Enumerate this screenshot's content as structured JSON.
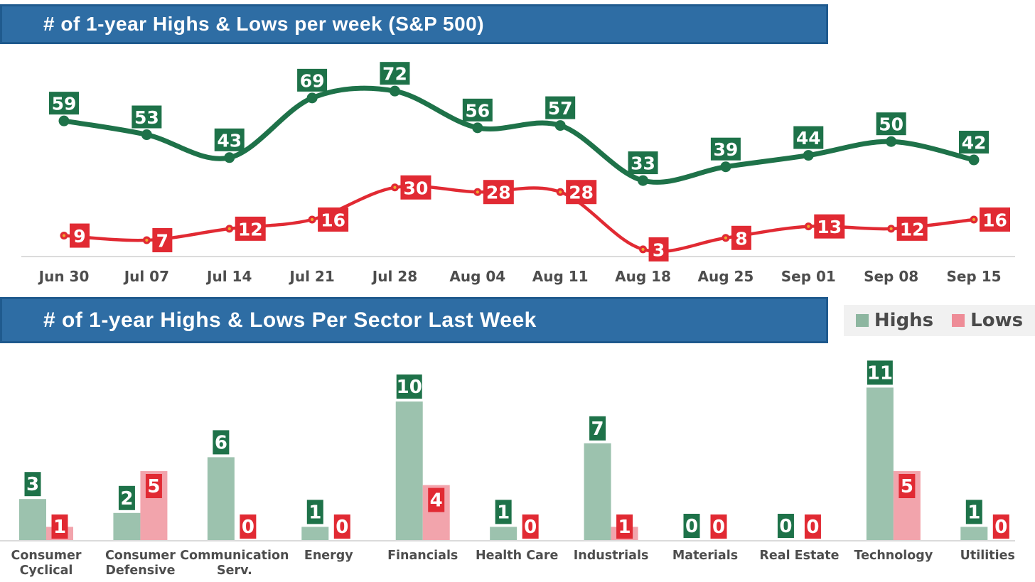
{
  "header1": {
    "title": "# of 1-year Highs & Lows per week (S&P 500)"
  },
  "header2": {
    "title": "# of 1-year Highs & Lows Per Sector Last Week"
  },
  "legend": {
    "highs_label": "Highs",
    "lows_label": "Lows"
  },
  "colors": {
    "header_bg": "#2E6DA4",
    "header_border": "#1F5A8E",
    "highs_green": "#1E7249",
    "lows_red": "#E12A33",
    "bar_green": "#9CC2AE",
    "bar_pink": "#F2A4AC",
    "legend_green": "#8DB6A0",
    "legend_pink": "#EE8C97",
    "legend_bg": "#F1F1F1",
    "axis_line": "#DBDBDB",
    "label_text": "#4D4D4D",
    "dot_center_yellow": "#F0A830",
    "label_number_text": "#FFFFFF"
  },
  "chart_data": [
    {
      "type": "line",
      "title": "# of 1-year Highs & Lows per week (S&P 500)",
      "x": [
        "Jun 30",
        "Jul 07",
        "Jul 14",
        "Jul 21",
        "Jul 28",
        "Aug 04",
        "Aug 11",
        "Aug 18",
        "Aug 25",
        "Sep 01",
        "Sep 08",
        "Sep 15"
      ],
      "series": [
        {
          "name": "Highs",
          "values": [
            59,
            53,
            43,
            69,
            72,
            56,
            57,
            33,
            39,
            44,
            50,
            42
          ]
        },
        {
          "name": "Lows",
          "values": [
            9,
            7,
            12,
            16,
            30,
            28,
            28,
            3,
            8,
            13,
            12,
            16
          ]
        }
      ],
      "ylim": [
        0,
        80
      ],
      "grid": false,
      "data_labels": true,
      "legend_position": "none"
    },
    {
      "type": "bar",
      "title": "# of 1-year Highs & Lows Per Sector Last Week",
      "categories": [
        "Consumer Cyclical",
        "Consumer Defensive",
        "Communication Serv.",
        "Energy",
        "Financials",
        "Health Care",
        "Industrials",
        "Materials",
        "Real Estate",
        "Technology",
        "Utilities"
      ],
      "label_lines": [
        [
          "Consumer",
          "Cyclical"
        ],
        [
          "Consumer",
          "Defensive"
        ],
        [
          "Communication",
          "Serv."
        ],
        [
          "Energy"
        ],
        [
          "Financials"
        ],
        [
          "Health Care"
        ],
        [
          "Industrials"
        ],
        [
          "Materials"
        ],
        [
          "Real Estate"
        ],
        [
          "Technology"
        ],
        [
          "Utilities"
        ]
      ],
      "series": [
        {
          "name": "Highs",
          "values": [
            3,
            2,
            6,
            1,
            10,
            1,
            7,
            0,
            0,
            11,
            1
          ]
        },
        {
          "name": "Lows",
          "values": [
            1,
            5,
            0,
            0,
            4,
            0,
            1,
            0,
            0,
            5,
            0
          ]
        }
      ],
      "ylim": [
        0,
        12
      ],
      "grid": false,
      "data_labels": true,
      "legend_position": "top-right"
    }
  ]
}
